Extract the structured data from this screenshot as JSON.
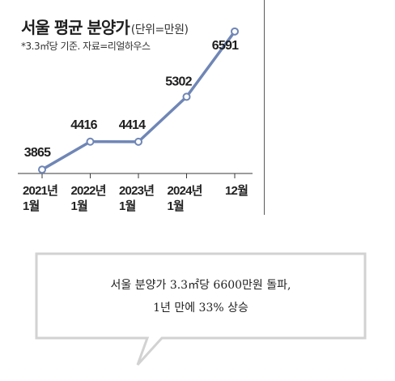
{
  "chart_data": {
    "type": "line",
    "title": "서울 평균 분양가",
    "unit": "(단위=만원)",
    "subtitle": "*3.3㎡당 기준. 자료=리얼하우스",
    "x": [
      [
        "2021년",
        "1월"
      ],
      [
        "2022년",
        "1월"
      ],
      [
        "2023년",
        "1월"
      ],
      [
        "2024년",
        "1월"
      ],
      [
        "12월",
        ""
      ]
    ],
    "series": [
      {
        "values": [
          3865,
          4416,
          4414,
          5302,
          6591
        ]
      }
    ],
    "value_labels": [
      "3865",
      "4416",
      "4414",
      "5302",
      "6591"
    ],
    "ylim": [
      3500,
      6700
    ],
    "grid": false,
    "line_color": "#6f86b6",
    "marker_fill": "#ffffff"
  },
  "caption": {
    "line1": "서울 분양가 3.3㎡당 6600만원 돌파,",
    "line2": "1년 만에 33% 상승"
  }
}
